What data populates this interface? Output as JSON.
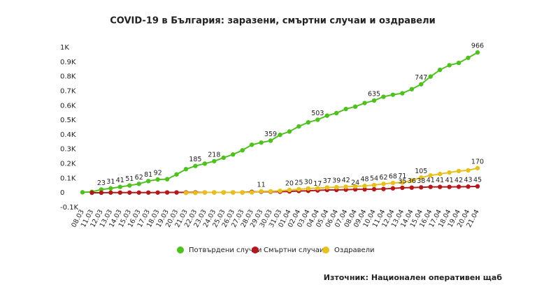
{
  "chart_data": {
    "type": "line",
    "title": "COVID-19 в България: заразени, смъртни случаи и оздравели",
    "source": "Източник: Национален оперативен щаб",
    "categories": [
      "08.03",
      "11.03",
      "12.03",
      "13.03",
      "14.03",
      "15.03",
      "16.03",
      "17.03",
      "18.03",
      "19.03",
      "20.03",
      "21.03",
      "22.03",
      "23.03",
      "24.03",
      "25.03",
      "26.03",
      "27.03",
      "28.03",
      "29.03",
      "30.03",
      "31.03",
      "01.04",
      "02.04",
      "03.04",
      "04.04",
      "05.04",
      "06.04",
      "07.04",
      "08.04",
      "09.04",
      "10.04",
      "11.04",
      "12.04",
      "13.04",
      "14.04",
      "15.04",
      "16.04",
      "17.04",
      "18.04",
      "19.04",
      "20.04",
      "21.04"
    ],
    "series": [
      {
        "name": "Потвърдени случаи",
        "color": "#4ec11f",
        "values": [
          4,
          7,
          23,
          31,
          41,
          51,
          62,
          81,
          92,
          94,
          127,
          163,
          185,
          201,
          218,
          242,
          264,
          293,
          331,
          346,
          359,
          399,
          422,
          457,
          485,
          503,
          531,
          549,
          577,
          593,
          618,
          635,
          661,
          675,
          685,
          713,
          747,
          800,
          846,
          878,
          894,
          929,
          966
        ],
        "value_labels": [
          null,
          null,
          "23",
          "31",
          "41",
          "51",
          "62",
          "81",
          "92",
          null,
          null,
          null,
          "185",
          null,
          "218",
          null,
          null,
          null,
          null,
          null,
          "359",
          null,
          null,
          null,
          null,
          "503",
          null,
          null,
          null,
          null,
          null,
          "635",
          null,
          null,
          null,
          null,
          "747",
          null,
          null,
          null,
          null,
          null,
          "966"
        ]
      },
      {
        "name": "Смъртни случаи",
        "color": "#b3191c",
        "values": [
          null,
          1,
          1,
          2,
          2,
          2,
          2,
          2,
          2,
          3,
          3,
          3,
          3,
          3,
          3,
          3,
          3,
          3,
          7,
          8,
          8,
          8,
          10,
          13,
          14,
          17,
          20,
          20,
          22,
          24,
          24,
          25,
          27,
          31,
          35,
          36,
          38,
          41,
          41,
          41,
          42,
          43,
          45
        ],
        "value_labels": [
          null,
          null,
          null,
          null,
          null,
          null,
          null,
          null,
          null,
          null,
          null,
          null,
          null,
          null,
          null,
          null,
          null,
          null,
          null,
          null,
          null,
          null,
          null,
          null,
          null,
          "17",
          null,
          null,
          null,
          "24",
          null,
          null,
          null,
          null,
          "35",
          "36",
          "38",
          "41",
          "41",
          "41",
          "42",
          "43",
          "45"
        ]
      },
      {
        "name": "Оздравели",
        "color": "#e6c01c",
        "values": [
          null,
          null,
          null,
          null,
          null,
          null,
          null,
          null,
          null,
          null,
          null,
          0,
          0,
          3,
          3,
          3,
          3,
          3,
          3,
          11,
          11,
          14,
          20,
          25,
          30,
          32,
          37,
          39,
          42,
          45,
          48,
          54,
          62,
          68,
          71,
          85,
          105,
          120,
          130,
          140,
          150,
          155,
          170
        ],
        "value_labels": [
          null,
          null,
          null,
          null,
          null,
          null,
          null,
          null,
          null,
          null,
          null,
          null,
          null,
          null,
          null,
          null,
          null,
          null,
          null,
          "11",
          null,
          null,
          "20",
          "25",
          "30",
          null,
          "37",
          "39",
          "42",
          null,
          "48",
          "54",
          "62",
          "68",
          "71",
          null,
          "105",
          null,
          null,
          null,
          null,
          null,
          "170"
        ]
      }
    ],
    "ylim": [
      -100,
      1000
    ],
    "yticks": [
      {
        "value": -100,
        "label": "-0.1K"
      },
      0,
      {
        "value": 100,
        "label": "0.1K"
      },
      {
        "value": 200,
        "label": "0.2K"
      },
      {
        "value": 300,
        "label": "0.3K"
      },
      {
        "value": 400,
        "label": "0.4K"
      },
      {
        "value": 500,
        "label": "0.5K"
      },
      {
        "value": 600,
        "label": "0.6K"
      },
      {
        "value": 700,
        "label": "0.7K"
      },
      {
        "value": 800,
        "label": "0.8K"
      },
      {
        "value": 900,
        "label": "0.9K"
      },
      {
        "value": 1000,
        "label": "1K"
      }
    ],
    "grid": false
  }
}
